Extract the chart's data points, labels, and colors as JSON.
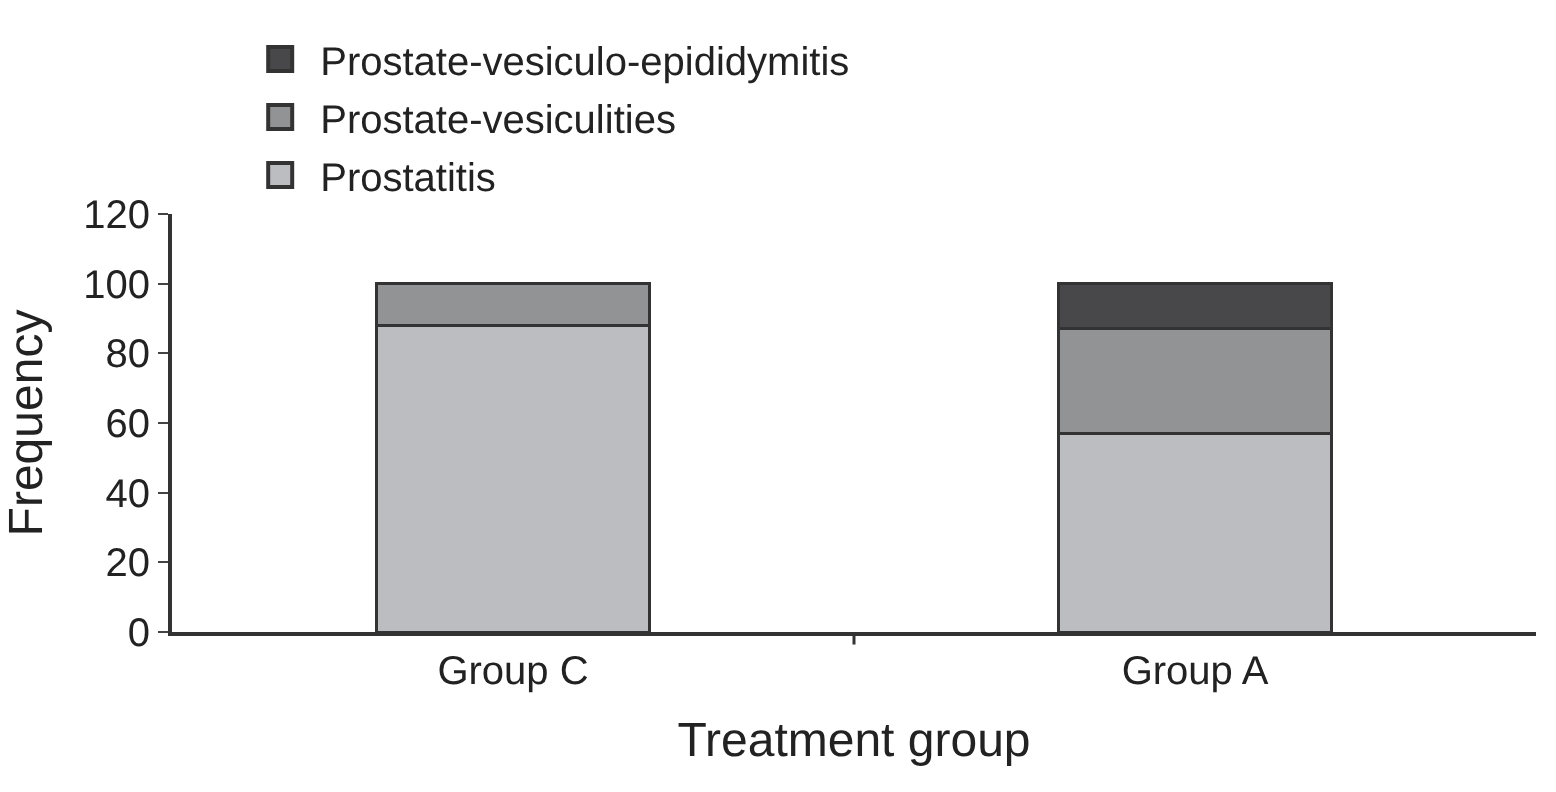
{
  "chart_data": {
    "type": "bar",
    "stacked": true,
    "xlabel": "Treatment group",
    "ylabel": "Frequency",
    "categories": [
      "Group C",
      "Group A"
    ],
    "series": [
      {
        "name": "Prostatitis",
        "color": "#bcbdc0",
        "values": [
          88,
          57
        ]
      },
      {
        "name": "Prostate-vesiculities",
        "color": "#929395",
        "values": [
          12,
          30
        ]
      },
      {
        "name": "Prostate-vesiculo-epididymitis",
        "color": "#48484a",
        "values": [
          null,
          13
        ]
      }
    ],
    "ylim": [
      0,
      120
    ],
    "yticks": [
      0,
      20,
      40,
      60,
      80,
      100,
      120
    ],
    "legend": "top left"
  }
}
